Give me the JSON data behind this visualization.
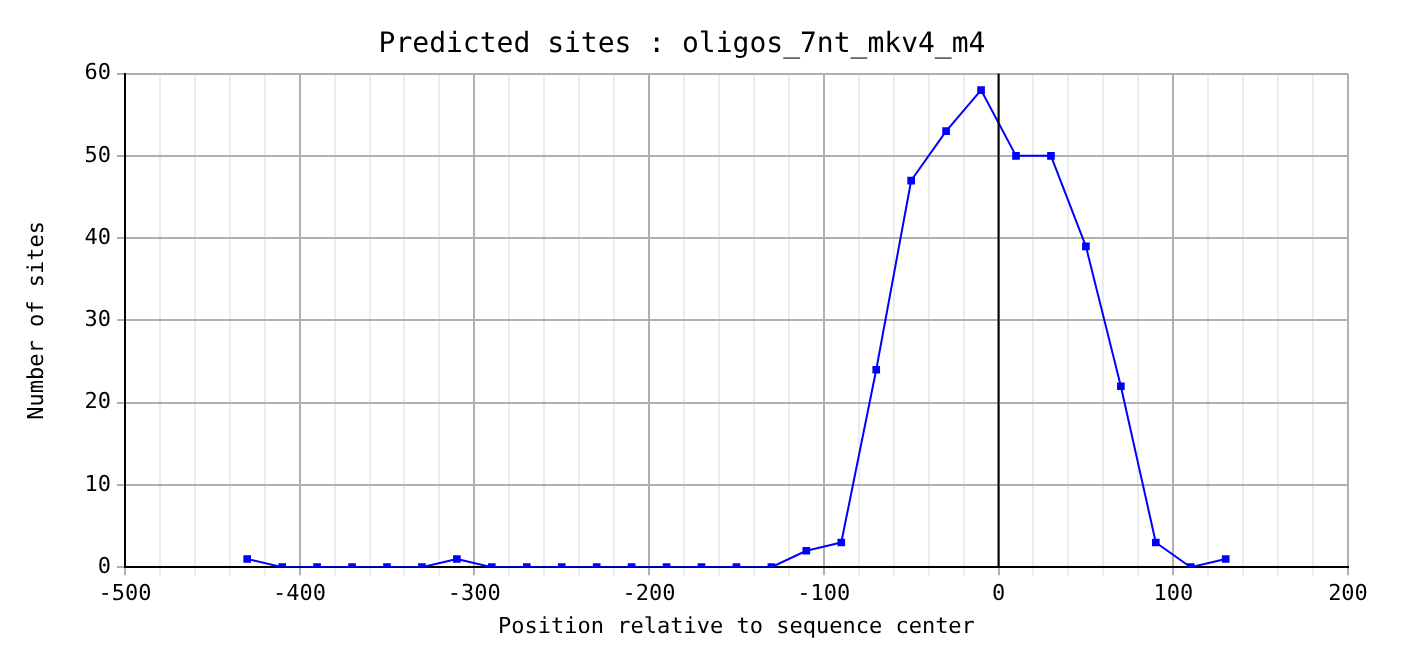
{
  "chart_data": {
    "type": "line",
    "title": "Predicted sites : oligos_7nt_mkv4_m4",
    "xlabel": "Position relative to sequence center",
    "ylabel": "Number of sites",
    "x": [
      -430,
      -410,
      -390,
      -370,
      -350,
      -330,
      -310,
      -290,
      -270,
      -250,
      -230,
      -210,
      -190,
      -170,
      -150,
      -130,
      -110,
      -90,
      -70,
      -50,
      -30,
      -10,
      10,
      30,
      50,
      70,
      90,
      110,
      130
    ],
    "series": [
      {
        "color": "#0000ff",
        "values": [
          1,
          0,
          0,
          0,
          0,
          0,
          1,
          0,
          0,
          0,
          0,
          0,
          0,
          0,
          0,
          0,
          2,
          3,
          24,
          47,
          53,
          58,
          50,
          50,
          39,
          22,
          3,
          0,
          1
        ]
      }
    ],
    "xlim": [
      -500,
      200
    ],
    "xticks": [
      -500,
      -400,
      -300,
      -200,
      -100,
      0,
      100,
      200
    ],
    "ylim": [
      0,
      60
    ],
    "yticks": [
      0,
      10,
      20,
      30,
      40,
      50,
      60
    ],
    "ref_lines": [
      {
        "axis": "x",
        "value": 0,
        "color": "#000000"
      }
    ],
    "grid": true,
    "legend": false,
    "marker": "square",
    "line_style": "solid"
  }
}
